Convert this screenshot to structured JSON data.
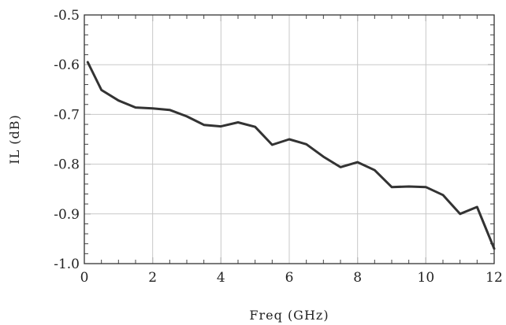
{
  "chart_data": {
    "type": "line",
    "title": "",
    "xlabel": "Freq (GHz)",
    "ylabel": "IL (dB)",
    "xlim": [
      0,
      12
    ],
    "ylim": [
      -1.0,
      -0.5
    ],
    "x_ticks": [
      "0",
      "2",
      "4",
      "6",
      "8",
      "10",
      "12"
    ],
    "y_ticks": [
      "-0.5",
      "-0.6",
      "-0.7",
      "-0.8",
      "-0.9",
      "-1.0"
    ],
    "grid": true,
    "series": [
      {
        "color": "#333333",
        "x": [
          0.1,
          0.5,
          1.0,
          1.5,
          2.0,
          2.5,
          3.0,
          3.5,
          4.0,
          4.5,
          5.0,
          5.5,
          6.0,
          6.5,
          7.0,
          7.5,
          8.0,
          8.5,
          9.0,
          9.5,
          10.0,
          10.5,
          11.0,
          11.5,
          12.0
        ],
        "y": [
          -0.595,
          -0.651,
          -0.672,
          -0.686,
          -0.688,
          -0.691,
          -0.704,
          -0.721,
          -0.724,
          -0.716,
          -0.725,
          -0.761,
          -0.75,
          -0.76,
          -0.785,
          -0.806,
          -0.796,
          -0.812,
          -0.846,
          -0.845,
          -0.846,
          -0.862,
          -0.9,
          -0.886,
          -0.97
        ]
      }
    ]
  }
}
